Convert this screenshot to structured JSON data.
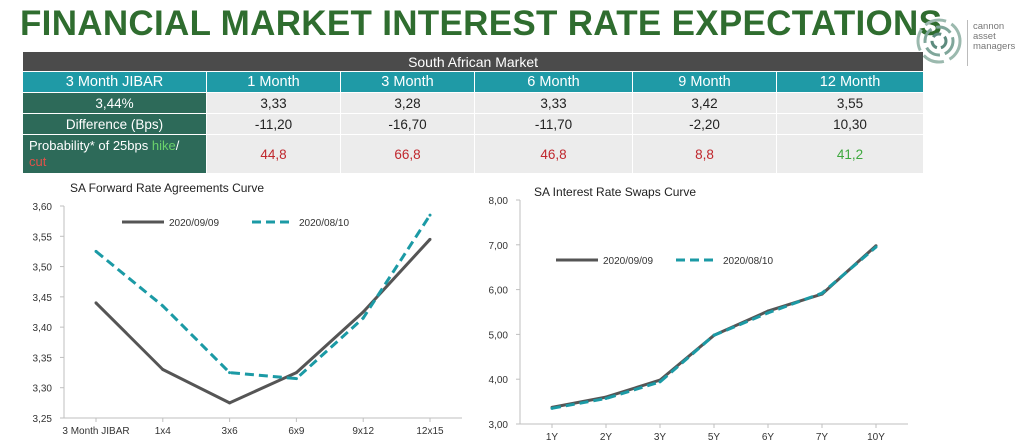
{
  "title": "FINANCIAL MARKET INTEREST RATE EXPECTATIONS",
  "logo": {
    "line1": "cannon",
    "line2": "asset",
    "line3": "managers"
  },
  "table": {
    "banner": "South African Market",
    "headers": [
      "3 Month JIBAR",
      "1 Month",
      "3 Month",
      "6 Month",
      "9 Month",
      "12 Month"
    ],
    "jibar_value": "3,44%",
    "row1": [
      "3,33",
      "3,28",
      "3,33",
      "3,42",
      "3,55"
    ],
    "difference_label": "Difference (Bps)",
    "row2": [
      "-11,20",
      "-16,70",
      "-11,70",
      "-2,20",
      "10,30"
    ],
    "probability_label_start": "Probability* of 25bps ",
    "probability_hike": "hike",
    "probability_sep": "/",
    "probability_cut": "cut",
    "row3": [
      "44,8",
      "66,8",
      "46,8",
      "8,8",
      "41,2"
    ],
    "colors": {
      "header_bg": "#1f9aa6",
      "label_bg": "#2d6a59",
      "banner_bg": "#4b4b4b",
      "hike_value": "#c0272d",
      "cut_value": "#3ea83e"
    }
  },
  "chart_data": [
    {
      "type": "line",
      "title": "SA Forward Rate Agreements Curve",
      "categories": [
        "3 Month JIBAR",
        "1x4",
        "3x6",
        "6x9",
        "9x12",
        "12x15"
      ],
      "series": [
        {
          "name": "2020/09/09",
          "values": [
            3.44,
            3.33,
            3.275,
            3.325,
            3.425,
            3.545
          ],
          "color": "#555555",
          "dashed": false
        },
        {
          "name": "2020/08/10",
          "values": [
            3.525,
            3.435,
            3.325,
            3.315,
            3.415,
            3.585
          ],
          "color": "#1b9aa5",
          "dashed": true
        }
      ],
      "ylim": [
        3.25,
        3.6
      ],
      "yticks": [
        "3,25",
        "3,30",
        "3,35",
        "3,40",
        "3,45",
        "3,50",
        "3,55",
        "3,60"
      ],
      "legend": "top"
    },
    {
      "type": "line",
      "title": "SA Interest Rate Swaps Curve",
      "categories": [
        "1Y",
        "2Y",
        "3Y",
        "5Y",
        "6Y",
        "7Y",
        "10Y"
      ],
      "series": [
        {
          "name": "2020/09/09",
          "values": [
            3.37,
            3.6,
            3.98,
            4.98,
            5.52,
            5.9,
            6.98
          ],
          "color": "#555555",
          "dashed": false
        },
        {
          "name": "2020/08/10",
          "values": [
            3.35,
            3.57,
            3.94,
            4.98,
            5.48,
            5.92,
            6.95
          ],
          "color": "#1b9aa5",
          "dashed": true
        }
      ],
      "ylim": [
        3,
        8
      ],
      "yticks": [
        "3,00",
        "4,00",
        "5,00",
        "6,00",
        "7,00",
        "8,00"
      ],
      "legend": "upper-left"
    }
  ]
}
